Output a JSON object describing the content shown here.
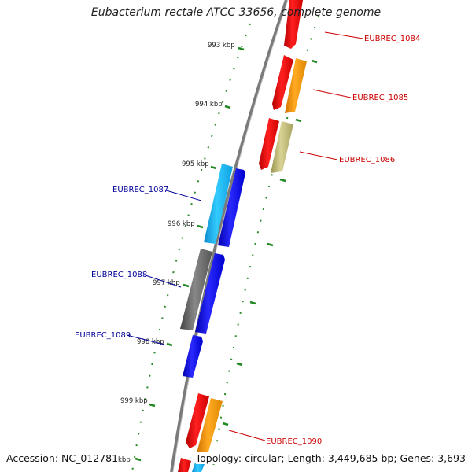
{
  "title": "Eubacterium rectale ATCC 33656, complete genome",
  "accession": "Accession: NC_012781",
  "topology": "Topology: circular; Length: 3,449,685 bp; Genes: 3,693",
  "ticks": [
    "993 kbp",
    "994 kbp",
    "995 kbp",
    "996 kbp",
    "997 kbp",
    "998 kbp",
    "999 kbp",
    "kbp"
  ],
  "genes": [
    {
      "label": "EUBREC_1084",
      "strand": "plus",
      "color": "#cc0000"
    },
    {
      "label": "EUBREC_1085",
      "strand": "plus",
      "color": "#cc0000"
    },
    {
      "label": "EUBREC_1086",
      "strand": "plus",
      "color": "#cc0000"
    },
    {
      "label": "EUBREC_1087",
      "strand": "minus",
      "color": "#000099"
    },
    {
      "label": "EUBREC_1088",
      "strand": "minus",
      "color": "#000099"
    },
    {
      "label": "EUBREC_1089",
      "strand": "minus",
      "color": "#000099"
    },
    {
      "label": "EUBREC_1090",
      "strand": "plus",
      "color": "#cc0000"
    }
  ],
  "colors": {
    "backbone": "#888888",
    "cds_plus": "#ff0000",
    "cds_minus": "#0000ee",
    "orange": "#ff9900",
    "khaki": "#bdb76b",
    "cyan": "#11bbee",
    "gray": "#666666",
    "tick": "#228822"
  }
}
